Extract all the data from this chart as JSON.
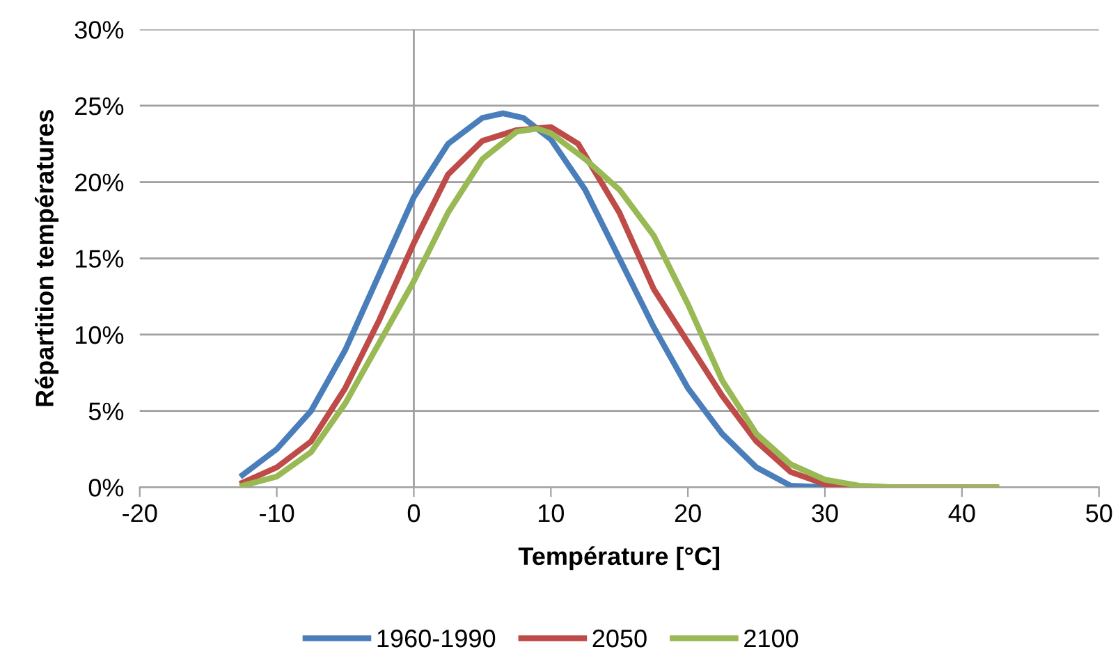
{
  "chart_data": {
    "type": "line",
    "xlabel": "Température [°C]",
    "ylabel": "Répartition températures",
    "xlim": [
      -20,
      50
    ],
    "xticks": [
      -20,
      -10,
      0,
      10,
      20,
      30,
      40,
      50
    ],
    "ylim": [
      0,
      30
    ],
    "yticks": [
      {
        "value": 0,
        "label": "0%"
      },
      {
        "value": 5,
        "label": "5%"
      },
      {
        "value": 10,
        "label": "10%"
      },
      {
        "value": 15,
        "label": "15%"
      },
      {
        "value": 20,
        "label": "20%"
      },
      {
        "value": 25,
        "label": "25%"
      },
      {
        "value": 30,
        "label": "30%"
      }
    ],
    "grid": "y",
    "legend": "bottom",
    "ref_lines": [
      {
        "axis": "x",
        "value": 0,
        "color": "#a0a0a0"
      }
    ],
    "series": [
      {
        "name": "1960-1990",
        "color": "#4a7ebb",
        "x": [
          -12.5,
          -10,
          -7.5,
          -5,
          -2.5,
          0,
          2.5,
          5,
          6.5,
          8,
          10,
          12.5,
          15,
          17.5,
          20,
          22.5,
          25,
          27.5,
          30
        ],
        "values": [
          0.8,
          2.5,
          5,
          9,
          14,
          19,
          22.5,
          24.2,
          24.5,
          24.2,
          22.8,
          19.5,
          15,
          10.5,
          6.5,
          3.5,
          1.3,
          0.1,
          0
        ]
      },
      {
        "name": "2050",
        "color": "#be4b48",
        "x": [
          -12.5,
          -10,
          -7.5,
          -5,
          -2.5,
          0,
          2.5,
          5,
          7.5,
          10,
          12,
          15,
          17.5,
          20,
          22.5,
          25,
          27.5,
          30,
          32.5,
          42.5
        ],
        "values": [
          0.3,
          1.3,
          3,
          6.5,
          11,
          16,
          20.5,
          22.7,
          23.4,
          23.6,
          22.5,
          18,
          13,
          9.5,
          6,
          3,
          1,
          0.2,
          0,
          0
        ]
      },
      {
        "name": "2100",
        "color": "#98b954",
        "x": [
          -12.5,
          -10,
          -7.5,
          -5,
          -2.5,
          0,
          2.5,
          5,
          7.5,
          9,
          10,
          12.5,
          15,
          17.5,
          20,
          22.5,
          25,
          27.5,
          30,
          32.5,
          35,
          42.5
        ],
        "values": [
          0.1,
          0.7,
          2.3,
          5.5,
          9.5,
          13.5,
          18,
          21.5,
          23.3,
          23.5,
          23.2,
          21.5,
          19.5,
          16.5,
          12,
          7,
          3.5,
          1.5,
          0.5,
          0.1,
          0,
          0
        ]
      }
    ]
  }
}
